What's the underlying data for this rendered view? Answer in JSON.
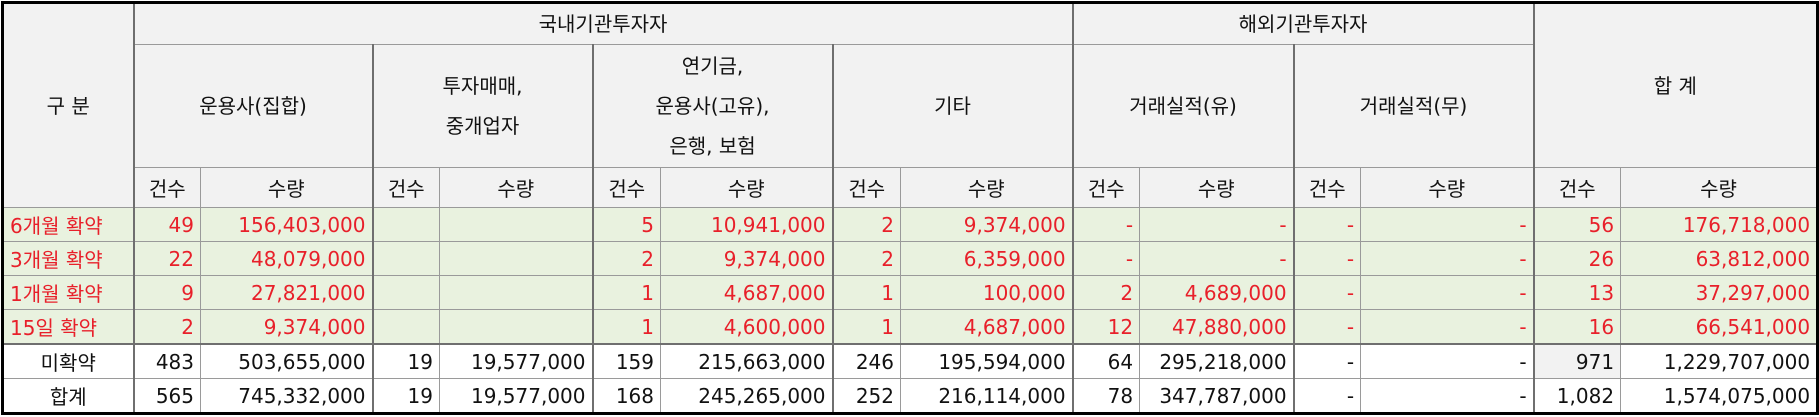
{
  "header": {
    "category": "구 분",
    "domestic_group": "국내기관투자자",
    "foreign_group": "해외기관투자자",
    "total_group": "합 계",
    "sub": [
      {
        "key": "collective",
        "lines": [
          "운용사(집합)"
        ]
      },
      {
        "key": "dealer",
        "lines": [
          "투자매매,",
          "중개업자"
        ]
      },
      {
        "key": "pension",
        "lines": [
          "연기금,",
          "운용사(고유),",
          "은행, 보험"
        ]
      },
      {
        "key": "other",
        "lines": [
          "기타"
        ]
      },
      {
        "key": "record_yes",
        "lines": [
          "거래실적(유)"
        ]
      },
      {
        "key": "record_no",
        "lines": [
          "거래실적(무)"
        ]
      }
    ],
    "count_label": "건수",
    "qty_label": "수량"
  },
  "rows": [
    {
      "label": "6개월 확약",
      "type": "conf",
      "cells": [
        "49",
        "156,403,000",
        "",
        "",
        "5",
        "10,941,000",
        "2",
        "9,374,000",
        "-",
        "-",
        "-",
        "-",
        "56",
        "176,718,000"
      ]
    },
    {
      "label": "3개월 확약",
      "type": "conf",
      "cells": [
        "22",
        "48,079,000",
        "",
        "",
        "2",
        "9,374,000",
        "2",
        "6,359,000",
        "-",
        "-",
        "-",
        "-",
        "26",
        "63,812,000"
      ]
    },
    {
      "label": "1개월 확약",
      "type": "conf",
      "cells": [
        "9",
        "27,821,000",
        "",
        "",
        "1",
        "4,687,000",
        "1",
        "100,000",
        "2",
        "4,689,000",
        "-",
        "-",
        "13",
        "37,297,000"
      ]
    },
    {
      "label": "15일 확약",
      "type": "conf",
      "cells": [
        "2",
        "9,374,000",
        "",
        "",
        "1",
        "4,600,000",
        "1",
        "4,687,000",
        "12",
        "47,880,000",
        "-",
        "-",
        "16",
        "66,541,000"
      ]
    },
    {
      "label": "미확약",
      "type": "plain",
      "cells": [
        "483",
        "503,655,000",
        "19",
        "19,577,000",
        "159",
        "215,663,000",
        "246",
        "195,594,000",
        "64",
        "295,218,000",
        "-",
        "-",
        "971",
        "1,229,707,000"
      ]
    },
    {
      "label": "합계",
      "type": "plain",
      "cells": [
        "565",
        "745,332,000",
        "19",
        "19,577,000",
        "168",
        "245,265,000",
        "252",
        "216,114,000",
        "78",
        "347,787,000",
        "-",
        "-",
        "1,082",
        "1,574,075,000"
      ]
    }
  ],
  "colors": {
    "header_bg": "#f2f2f2",
    "confirmed_bg": "#e9f2df",
    "confirmed_text": "#e8202a",
    "plain_text": "#111111"
  }
}
